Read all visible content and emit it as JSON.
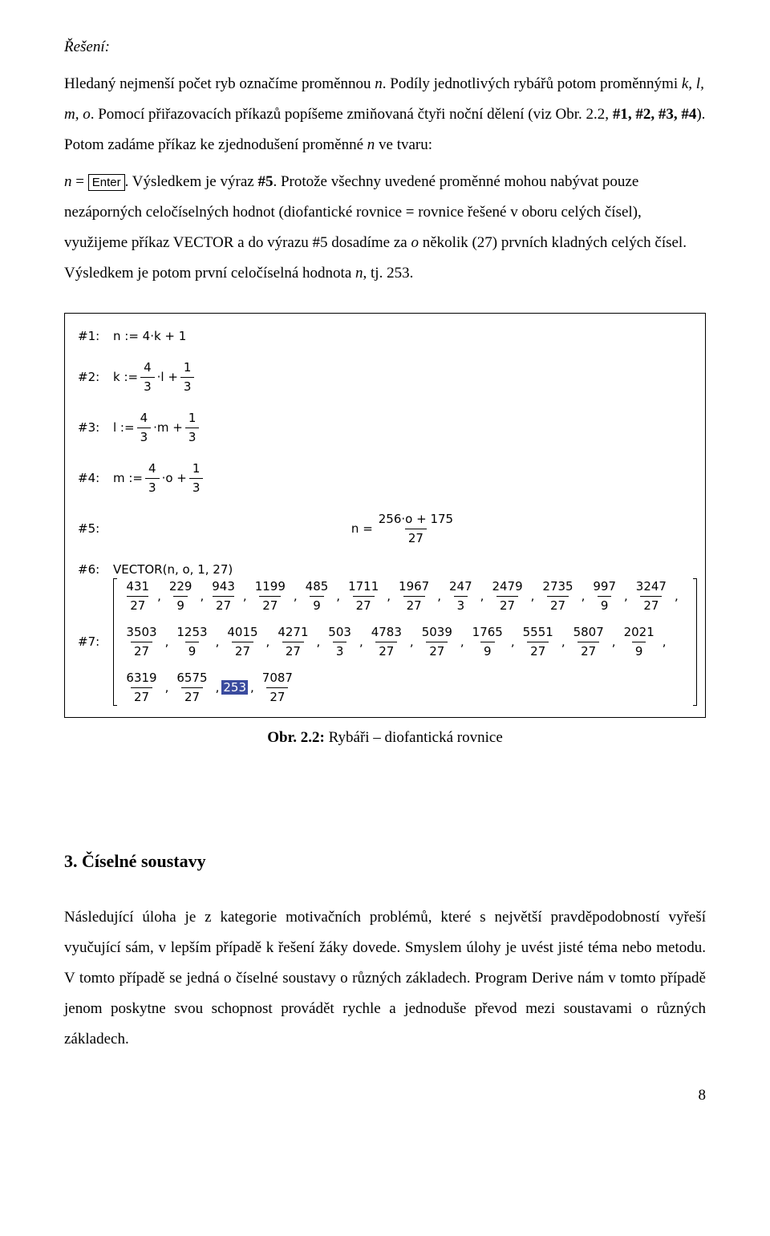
{
  "text": {
    "reseni": "Řešení:",
    "p1a": "Hledaný nejmenší počet ryb označíme proměnnou ",
    "p1_n": "n",
    "p1b": ". Podíly jednotlivých rybářů potom proměnnými ",
    "p1_vars": "k, l, m, o",
    "p1c": ". Pomocí přiřazovacích příkazů popíšeme zmiňovaná čtyři noční dělení (viz Obr. 2.2, ",
    "p1_refs": "#1, #2, #3, #4",
    "p1d": "). Potom zadáme příkaz ke zjednodušení proměnné ",
    "p1_n2": "n",
    "p1e": " ve tvaru:",
    "p2a": "n",
    "p2eq": " = ",
    "enter": "Enter",
    "p2b": ". Výsledkem je výraz  ",
    "p2ref": "#5",
    "p2c": ". Protože všechny uvedené proměnné mohou nabývat pouze nezáporných celočíselných hodnot (diofantické rovnice = rovnice řešené v oboru celých čísel), využijeme příkaz VECTOR a do výrazu #5 dosadíme za ",
    "p2_o": "o",
    "p2d": " několik (27) prvních kladných celých čísel. Výsledkem je potom první celočíselná hodnota ",
    "p2_n": "n",
    "p2e": ", tj. 253.",
    "caption_bold": "Obr. 2.2:",
    "caption_rest": " Rybáři – diofantická rovnice",
    "sec3": "3. Číselné soustavy",
    "body3": "Následující úloha je z kategorie motivačních problémů, které s největší pravděpodobností vyřeší vyučující sám, v lepším případě k řešení žáky dovede. Smyslem úlohy je uvést jisté téma nebo metodu. V tomto případě se jedná o číselné soustavy o různých základech. Program Derive nám v tomto případě jenom poskytne svou schopnost provádět rychle a jednoduše převod mezi soustavami o různých základech.",
    "pagenum": "8"
  },
  "figure": {
    "rows": [
      {
        "label": "#1:",
        "type": "assign",
        "lhs": "n",
        "plain": " := 4·k + 1"
      },
      {
        "label": "#2:",
        "type": "frac_assign",
        "lhs": "k",
        "a_num": "4",
        "a_den": "3",
        "var": "l",
        "b_num": "1",
        "b_den": "3"
      },
      {
        "label": "#3:",
        "type": "frac_assign",
        "lhs": "l",
        "a_num": "4",
        "a_den": "3",
        "var": "m",
        "b_num": "1",
        "b_den": "3"
      },
      {
        "label": "#4:",
        "type": "frac_assign",
        "lhs": "m",
        "a_num": "4",
        "a_den": "3",
        "var": "o",
        "b_num": "1",
        "b_den": "3"
      },
      {
        "label": "#5:",
        "type": "center_frac",
        "lhs": "n = ",
        "num": "256·o + 175",
        "den": "27"
      },
      {
        "label": "#6:",
        "type": "plain",
        "text": "VECTOR(n, o, 1, 27)"
      }
    ],
    "vector": {
      "label": "#7:",
      "items": [
        {
          "num": "431",
          "den": "27"
        },
        {
          "num": "229",
          "den": "9"
        },
        {
          "num": "943",
          "den": "27"
        },
        {
          "num": "1199",
          "den": "27"
        },
        {
          "num": "485",
          "den": "9"
        },
        {
          "num": "1711",
          "den": "27"
        },
        {
          "num": "1967",
          "den": "27"
        },
        {
          "num": "247",
          "den": "3"
        },
        {
          "num": "2479",
          "den": "27"
        },
        {
          "num": "2735",
          "den": "27"
        },
        {
          "num": "997",
          "den": "9"
        },
        {
          "num": "3247",
          "den": "27"
        },
        {
          "num": "3503",
          "den": "27"
        },
        {
          "num": "1253",
          "den": "9"
        },
        {
          "num": "4015",
          "den": "27"
        },
        {
          "num": "4271",
          "den": "27"
        },
        {
          "num": "503",
          "den": "3"
        },
        {
          "num": "4783",
          "den": "27"
        },
        {
          "num": "5039",
          "den": "27"
        },
        {
          "num": "1765",
          "den": "9"
        },
        {
          "num": "5551",
          "den": "27"
        },
        {
          "num": "5807",
          "den": "27"
        },
        {
          "num": "2021",
          "den": "9"
        },
        {
          "num": "6319",
          "den": "27"
        },
        {
          "num": "6575",
          "den": "27"
        },
        {
          "num": "253",
          "den": "",
          "highlight": true
        },
        {
          "num": "7087",
          "den": "27"
        }
      ]
    }
  },
  "colors": {
    "text": "#000000",
    "bg": "#ffffff",
    "highlight_bg": "#3a4b9e",
    "highlight_fg": "#ffffff",
    "border": "#000000"
  }
}
